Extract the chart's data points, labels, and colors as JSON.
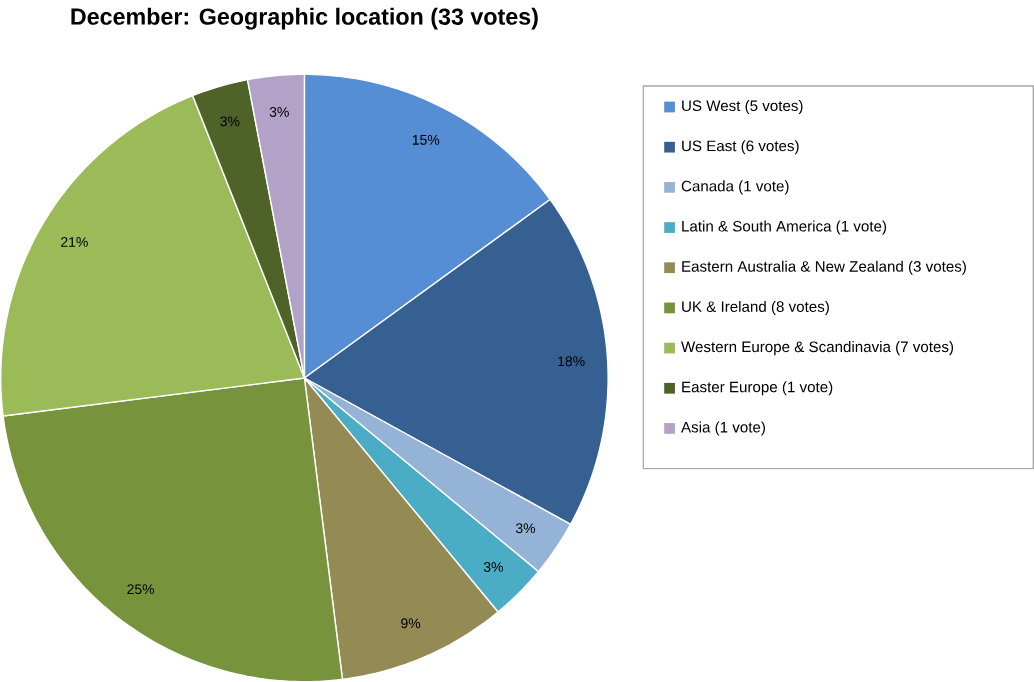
{
  "chart_data": {
    "type": "pie",
    "title": "December: Geographic location (33 votes)",
    "categories": [
      "US West (5 votes)",
      "US East (6 votes)",
      "Canada (1 vote)",
      "Latin & South America (1 vote)",
      "Eastern Australia & New Zealand (3 votes)",
      "UK & Ireland (8 votes)",
      "Western Europe & Scandinavia (7 votes)",
      "Easter Europe (1 vote)",
      "Asia (1 vote)"
    ],
    "values": [
      15,
      18,
      3,
      3,
      9,
      25,
      21,
      3,
      3
    ],
    "value_labels": [
      "15%",
      "18%",
      "3%",
      "3%",
      "9%",
      "25%",
      "21%",
      "3%",
      "3%"
    ],
    "colors": [
      "#558ed5",
      "#376092",
      "#95b3d7",
      "#4bacc6",
      "#948a54",
      "#77933c",
      "#9bbb59",
      "#4f6228",
      "#b3a2c7"
    ],
    "legend": "right"
  }
}
